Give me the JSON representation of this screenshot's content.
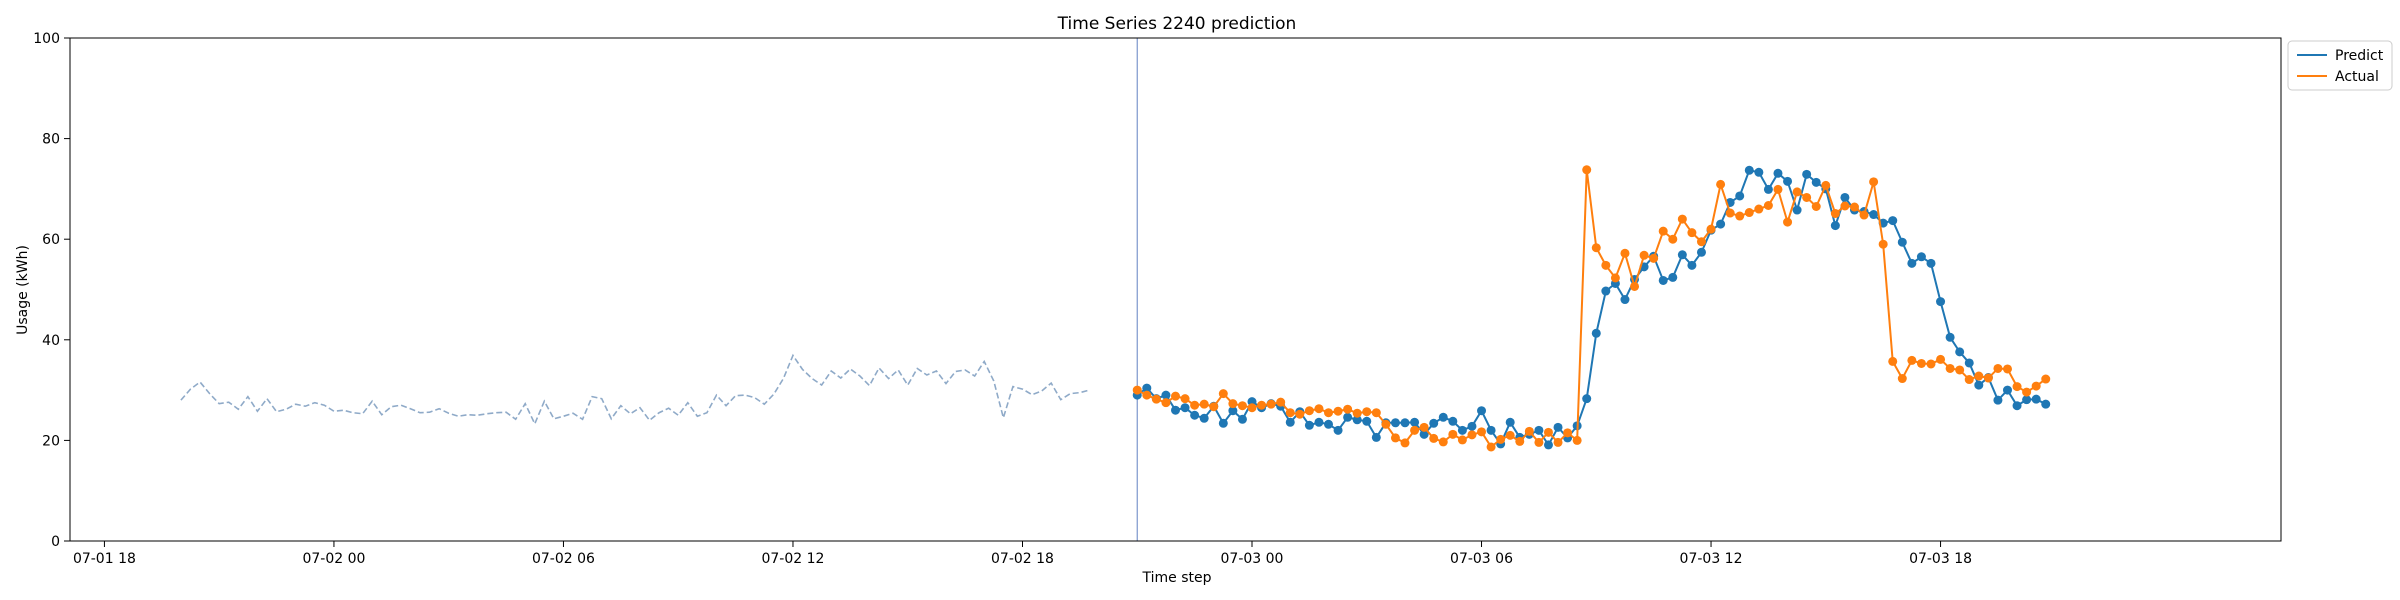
{
  "chart_data": {
    "type": "line",
    "title": "Time Series 2240 prediction",
    "xlabel": "Time step",
    "ylabel": "Usage (kWh)",
    "ylim": [
      0,
      100
    ],
    "yticks": [
      0,
      20,
      40,
      60,
      80,
      100
    ],
    "xlim": [
      "2024-07-01 17:06",
      "2024-07-04 02:54"
    ],
    "xticks": [
      {
        "t": "2024-07-01 18:00",
        "label": "07-01 18"
      },
      {
        "t": "2024-07-02 00:00",
        "label": "07-02 00"
      },
      {
        "t": "2024-07-02 06:00",
        "label": "07-02 06"
      },
      {
        "t": "2024-07-02 12:00",
        "label": "07-02 12"
      },
      {
        "t": "2024-07-02 18:00",
        "label": "07-02 18"
      },
      {
        "t": "2024-07-03 00:00",
        "label": "07-03 00"
      },
      {
        "t": "2024-07-03 06:00",
        "label": "07-03 06"
      },
      {
        "t": "2024-07-03 12:00",
        "label": "07-03 12"
      },
      {
        "t": "2024-07-03 18:00",
        "label": "07-03 18"
      }
    ],
    "grid": false,
    "legend": "upper right, outside plot",
    "colors": {
      "predict": "#1f77b4",
      "actual": "#ff7f0e",
      "history": "#8faac8",
      "split_line": "#7b95cc"
    },
    "split_time": "2024-07-02 21:00",
    "history": {
      "start": "2024-07-01 20:00",
      "step_minutes": 15,
      "values": [
        28.0,
        30.2,
        31.6,
        29.3,
        27.3,
        27.6,
        26.2,
        28.7,
        25.8,
        28.3,
        25.7,
        26.2,
        27.2,
        26.8,
        27.5,
        27.0,
        25.8,
        26.0,
        25.5,
        25.3,
        27.8,
        25.1,
        26.7,
        27.0,
        26.3,
        25.5,
        25.6,
        26.3,
        25.4,
        24.8,
        25.1,
        25.0,
        25.3,
        25.5,
        25.6,
        24.2,
        27.3,
        23.3,
        27.8,
        24.3,
        24.8,
        25.4,
        24.2,
        28.7,
        28.3,
        24.3,
        26.9,
        25.3,
        26.5,
        24.0,
        25.5,
        26.4,
        25.0,
        27.5,
        24.8,
        25.5,
        29.0,
        26.9,
        28.9,
        29.0,
        28.5,
        27.2,
        29.2,
        32.3,
        36.9,
        34.1,
        32.3,
        31.0,
        33.8,
        32.4,
        34.2,
        32.8,
        30.9,
        34.4,
        32.3,
        34.0,
        31.0,
        34.3,
        33.0,
        33.8,
        31.3,
        33.7,
        34.0,
        32.8,
        35.7,
        31.8,
        24.5,
        30.7,
        30.2,
        29.1,
        29.8,
        31.4,
        28.1,
        29.3,
        29.5,
        30.0
      ]
    },
    "series": [
      {
        "name": "Predict",
        "start": "2024-07-02 21:00",
        "step_minutes": 15,
        "values": [
          29.0,
          30.4,
          28.3,
          29.0,
          26.0,
          26.5,
          25.0,
          24.4,
          26.8,
          23.4,
          25.9,
          24.2,
          27.7,
          26.5,
          27.3,
          26.8,
          23.6,
          25.7,
          23.0,
          23.6,
          23.2,
          22.0,
          24.6,
          24.1,
          23.8,
          20.6,
          23.5,
          23.5,
          23.5,
          23.6,
          21.2,
          23.4,
          24.6,
          23.8,
          22.0,
          22.8,
          25.9,
          22.0,
          19.3,
          23.6,
          20.6,
          21.2,
          22.0,
          19.1,
          22.6,
          20.5,
          22.9,
          28.3,
          41.3,
          49.7,
          51.2,
          48.0,
          52.0,
          54.5,
          56.6,
          51.8,
          52.4,
          56.9,
          54.8,
          57.4,
          61.8,
          63.0,
          67.3,
          68.6,
          73.7,
          73.3,
          69.9,
          73.1,
          71.5,
          65.8,
          72.9,
          71.3,
          70.0,
          62.7,
          68.3,
          65.8,
          65.5,
          64.9,
          63.2,
          63.7,
          59.4,
          55.2,
          56.5,
          55.2,
          47.6,
          40.5,
          37.6,
          35.4,
          31.0,
          32.5,
          28.0,
          30.0,
          26.9,
          28.1,
          28.2,
          27.2
        ]
      },
      {
        "name": "Actual",
        "start": "2024-07-02 21:00",
        "step_minutes": 15,
        "values": [
          30.0,
          29.0,
          28.2,
          27.5,
          28.8,
          28.3,
          27.0,
          27.2,
          26.7,
          29.3,
          27.3,
          26.9,
          26.5,
          27.0,
          27.2,
          27.6,
          25.5,
          25.2,
          25.9,
          26.3,
          25.5,
          25.8,
          26.2,
          25.4,
          25.7,
          25.5,
          23.2,
          20.5,
          19.5,
          22.0,
          22.6,
          20.4,
          19.7,
          21.2,
          20.1,
          21.1,
          21.7,
          18.7,
          20.2,
          21.0,
          19.8,
          21.8,
          19.6,
          21.6,
          19.6,
          21.5,
          20.0,
          73.8,
          58.3,
          54.8,
          52.3,
          57.2,
          50.6,
          56.8,
          56.2,
          61.6,
          60.0,
          64.0,
          61.3,
          59.5,
          62.0,
          70.9,
          65.2,
          64.6,
          65.3,
          66.0,
          66.7,
          69.9,
          63.4,
          69.4,
          68.3,
          66.5,
          70.7,
          65.1,
          66.6,
          66.4,
          64.8,
          71.4,
          59.0,
          35.7,
          32.3,
          35.9,
          35.3,
          35.2,
          36.1,
          34.3,
          34.0,
          32.1,
          32.8,
          32.4,
          34.3,
          34.2,
          30.7,
          29.6,
          30.8,
          32.2
        ]
      }
    ]
  }
}
